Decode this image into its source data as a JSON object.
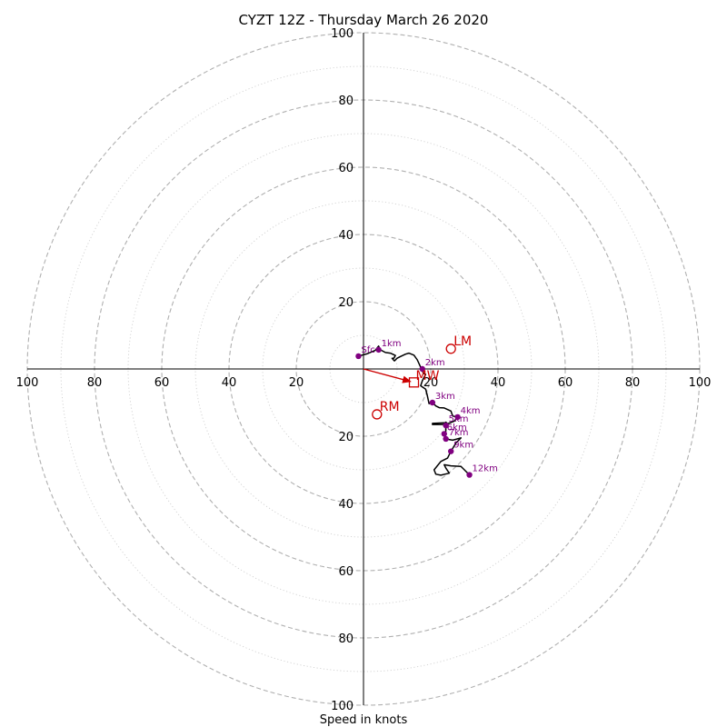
{
  "chart_data": {
    "type": "hodograph",
    "title": "CYZT 12Z - Thursday March 26 2020",
    "xlabel": "Speed in knots",
    "units": "knots",
    "ring_spacing_major": 20,
    "ring_spacing_minor": 10,
    "max_speed": 100,
    "tick_labels": [
      "20",
      "40",
      "60",
      "80",
      "100"
    ],
    "grid": true,
    "colors": {
      "trace": "#000000",
      "level_marker": "#800080",
      "storm_motion": "#cc0000",
      "major_ring": "#b0b0b0",
      "minor_ring": "#d0d0d0"
    },
    "wind_trace_uv": [
      [
        -1.5,
        3.8
      ],
      [
        1,
        4.5
      ],
      [
        3.5,
        5.5
      ],
      [
        4.5,
        6.8
      ],
      [
        5,
        5.7
      ],
      [
        6.5,
        4.9
      ],
      [
        8,
        4.7
      ],
      [
        9.5,
        4
      ],
      [
        9,
        3.2
      ],
      [
        8.5,
        3.2
      ],
      [
        9,
        2.6
      ],
      [
        9.2,
        2.4
      ],
      [
        10,
        3.2
      ],
      [
        11,
        3.7
      ],
      [
        12.5,
        4.4
      ],
      [
        13.5,
        4.7
      ],
      [
        15,
        4.1
      ],
      [
        16,
        2.7
      ],
      [
        17,
        0.5
      ],
      [
        17.5,
        0
      ],
      [
        17.5,
        -0.7
      ],
      [
        18,
        -1.4
      ],
      [
        18.5,
        -1.6
      ],
      [
        17.5,
        -3.5
      ],
      [
        17,
        -5
      ],
      [
        18.5,
        -6
      ],
      [
        19,
        -8
      ],
      [
        19.5,
        -10.3
      ],
      [
        20.5,
        -10
      ],
      [
        21.5,
        -11
      ],
      [
        22.5,
        -11.5
      ],
      [
        24,
        -11.6
      ],
      [
        26,
        -12.5
      ],
      [
        26.5,
        -14
      ],
      [
        28,
        -14.3
      ],
      [
        27,
        -15.5
      ],
      [
        25,
        -16.3
      ],
      [
        24.5,
        -15.8
      ],
      [
        24,
        -16.5
      ],
      [
        20.5,
        -16.5
      ],
      [
        20.5,
        -16.2
      ],
      [
        24.2,
        -16
      ],
      [
        24.5,
        -16.8
      ],
      [
        24.5,
        -17.8
      ],
      [
        24.5,
        -18.5
      ],
      [
        24,
        -19.3
      ],
      [
        24.5,
        -20.8
      ],
      [
        26.5,
        -21.2
      ],
      [
        29,
        -20.5
      ],
      [
        27.5,
        -22
      ],
      [
        26,
        -24.5
      ],
      [
        25,
        -26.5
      ],
      [
        23,
        -27.5
      ],
      [
        21,
        -30
      ],
      [
        21.5,
        -31.3
      ],
      [
        23,
        -31.6
      ],
      [
        25.5,
        -31
      ],
      [
        24.5,
        -29.5
      ],
      [
        24,
        -28.5
      ],
      [
        26,
        -28.8
      ],
      [
        29,
        -29
      ],
      [
        31.5,
        -31.5
      ]
    ],
    "level_markers": [
      {
        "label": "Sfc",
        "u": -1.5,
        "v": 3.8
      },
      {
        "label": "1km",
        "u": 4.5,
        "v": 5.7
      },
      {
        "label": "2km",
        "u": 17.5,
        "v": 0
      },
      {
        "label": "3km",
        "u": 20.5,
        "v": -10
      },
      {
        "label": "4km",
        "u": 28,
        "v": -14.3
      },
      {
        "label": "5km",
        "u": 24.5,
        "v": -16.8
      },
      {
        "label": "6km",
        "u": 24,
        "v": -19.3
      },
      {
        "label": "7km",
        "u": 24.5,
        "v": -20.8
      },
      {
        "label": "9km",
        "u": 26,
        "v": -24.5
      },
      {
        "label": "12km",
        "u": 31.5,
        "v": -31.5
      }
    ],
    "storm_motion": [
      {
        "label": "LM",
        "u": 26,
        "v": 6
      },
      {
        "label": "RM",
        "u": 4,
        "v": -13.5
      }
    ],
    "mean_wind": {
      "label": "MW",
      "u": 15,
      "v": -4
    }
  }
}
